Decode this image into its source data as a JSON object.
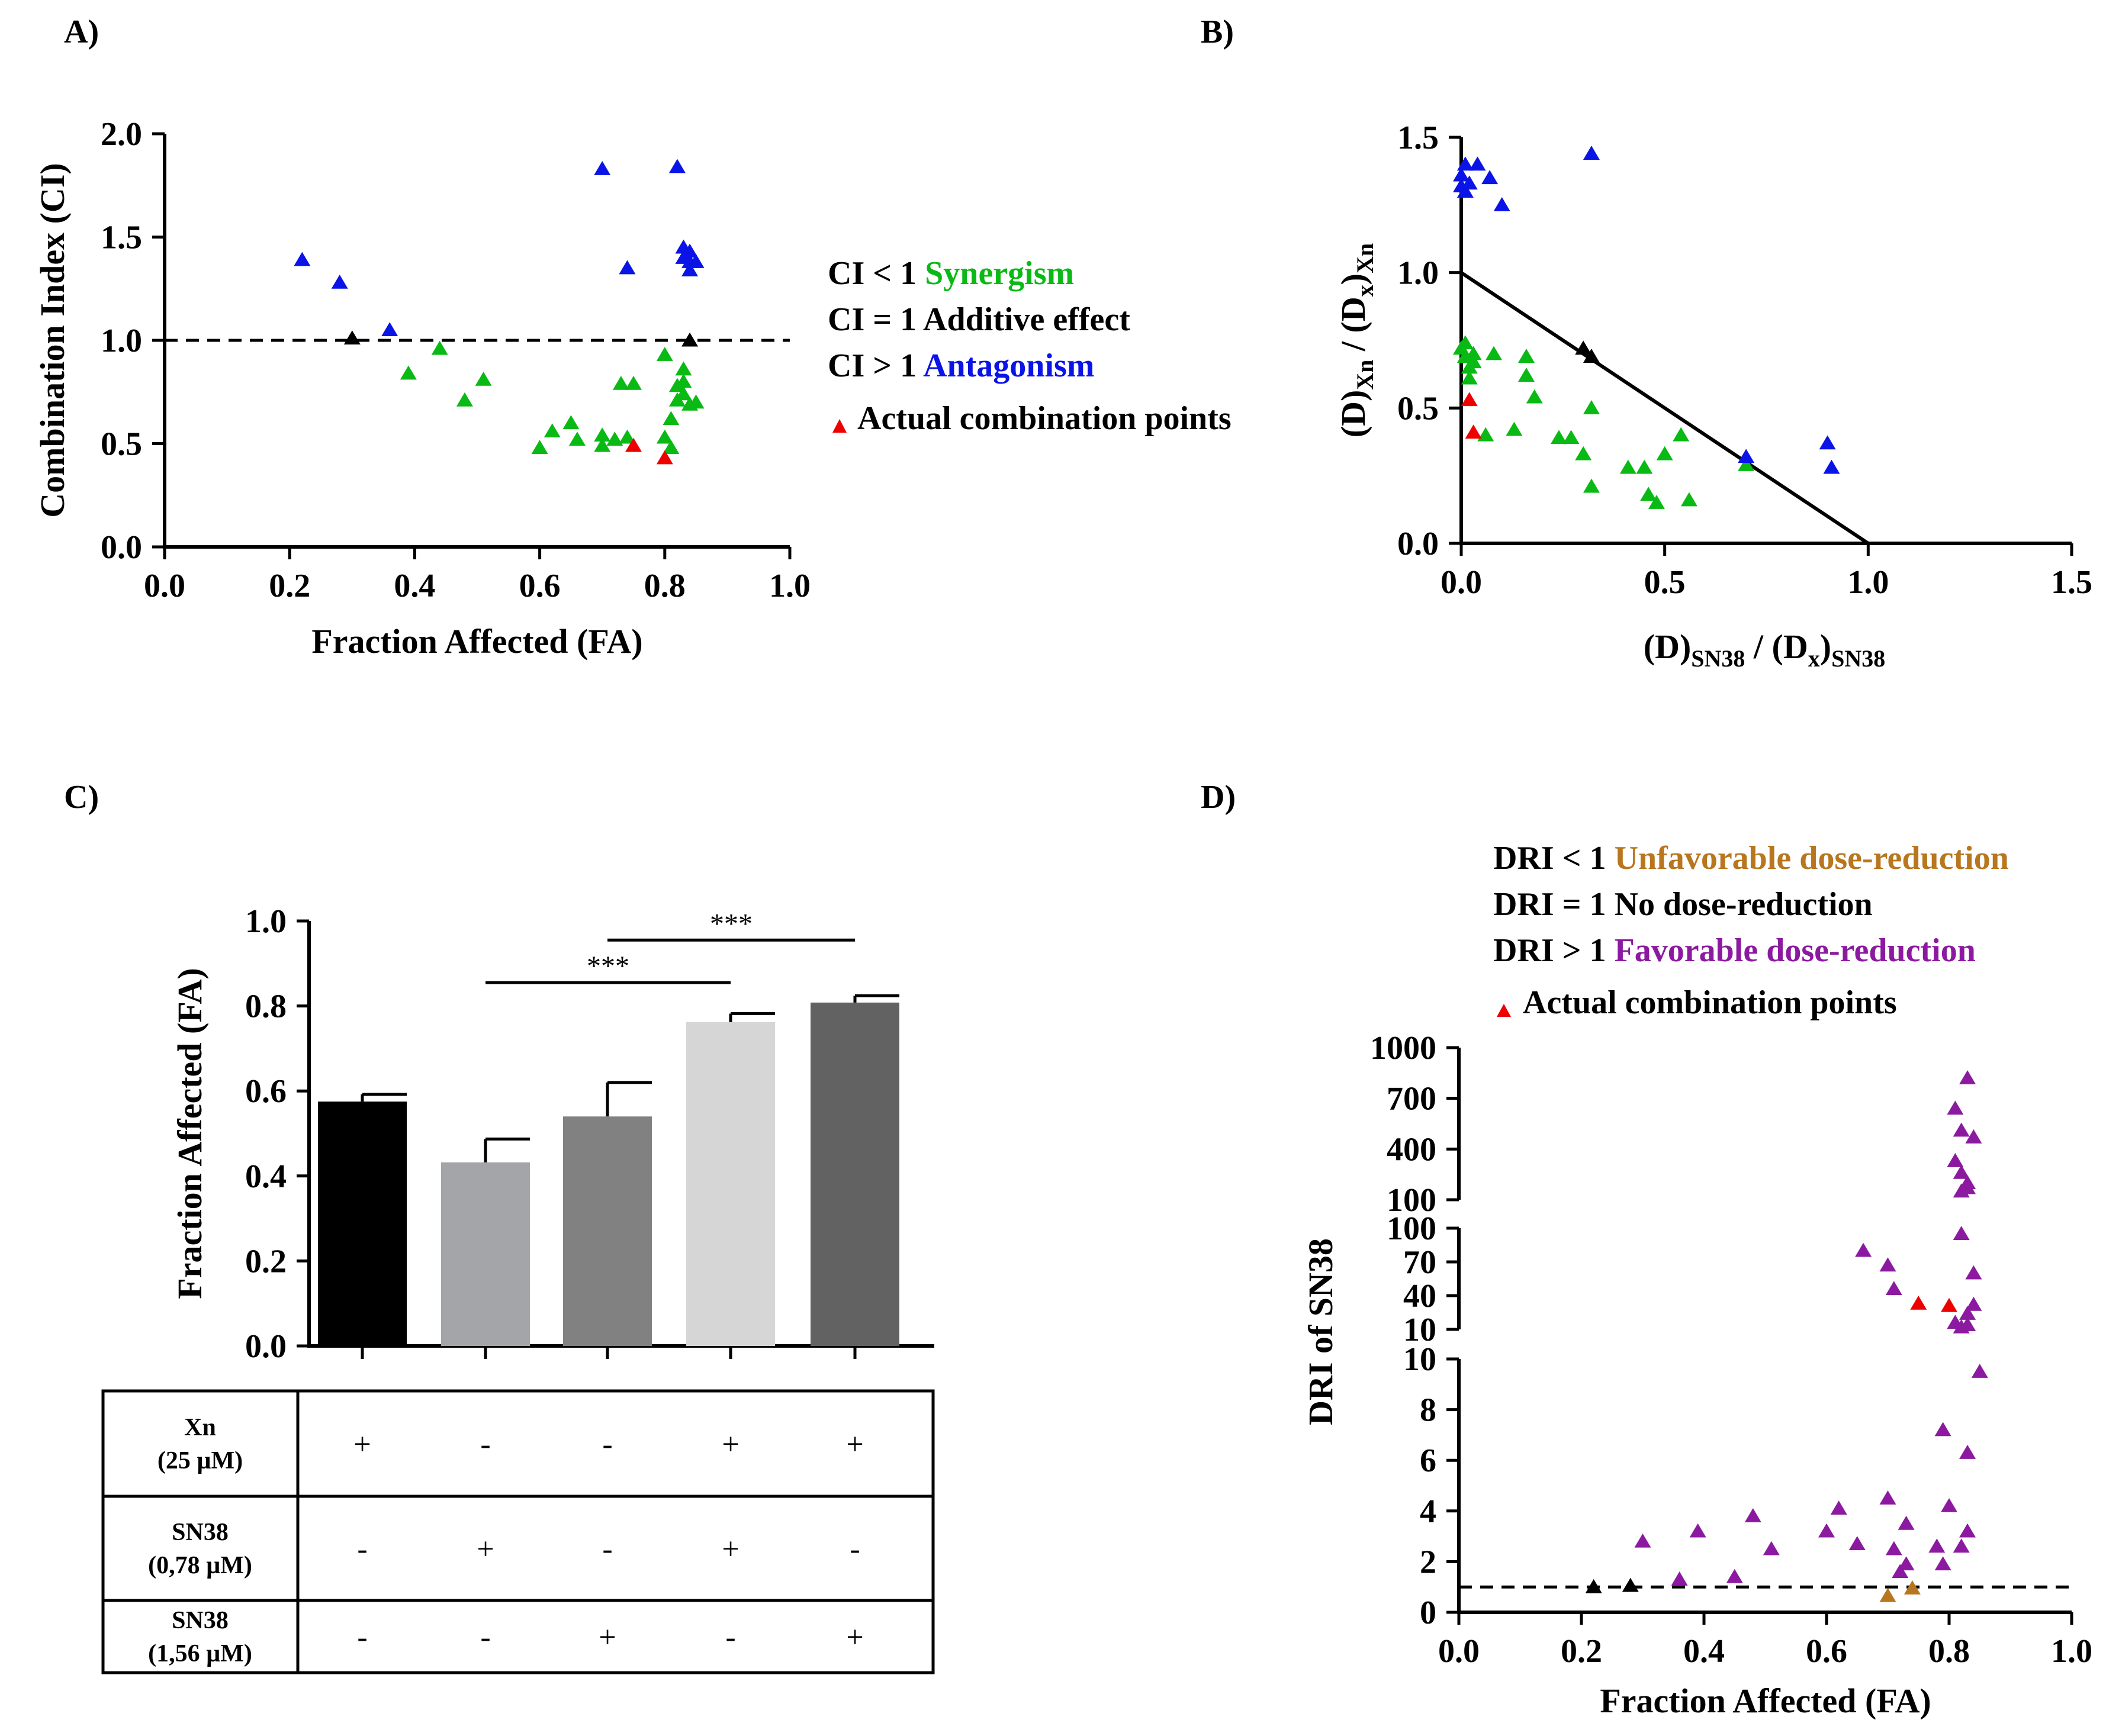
{
  "panels": {
    "a": "A)",
    "b": "B)",
    "c": "C)",
    "d": "D)"
  },
  "colors": {
    "synergism": "#0aba14",
    "antagonism": "#0a14e6",
    "additive": "#000000",
    "actual": "#ee0000",
    "unfavorable": "#b8761e",
    "favorable": "#8c1aa0"
  },
  "chart_data": [
    {
      "id": "A",
      "type": "scatter",
      "xlabel": "Fraction Affected (FA)",
      "ylabel": "Combination Index (CI)",
      "xlim": [
        0,
        1
      ],
      "ylim": [
        0,
        2
      ],
      "xticks": [
        "0.0",
        "0.2",
        "0.4",
        "0.6",
        "0.8",
        "1.0"
      ],
      "yticks": [
        "0.0",
        "0.5",
        "1.0",
        "1.5",
        "2.0"
      ],
      "reference_line": 1.0,
      "legend": {
        "lines": [
          {
            "prefix": "CI < 1 ",
            "label": "Synergism"
          },
          {
            "prefix": "CI = 1 Additive effect",
            "label": ""
          },
          {
            "prefix": "CI > 1 ",
            "label": "Antagonism"
          }
        ],
        "actual": "Actual combination points"
      },
      "series": [
        {
          "name": "Synergism",
          "points": [
            [
              0.39,
              0.84
            ],
            [
              0.44,
              0.96
            ],
            [
              0.48,
              0.71
            ],
            [
              0.51,
              0.81
            ],
            [
              0.6,
              0.48
            ],
            [
              0.62,
              0.56
            ],
            [
              0.65,
              0.6
            ],
            [
              0.66,
              0.52
            ],
            [
              0.7,
              0.54
            ],
            [
              0.7,
              0.49
            ],
            [
              0.72,
              0.52
            ],
            [
              0.73,
              0.79
            ],
            [
              0.74,
              0.53
            ],
            [
              0.75,
              0.79
            ],
            [
              0.8,
              0.53
            ],
            [
              0.8,
              0.93
            ],
            [
              0.81,
              0.62
            ],
            [
              0.82,
              0.71
            ],
            [
              0.82,
              0.78
            ],
            [
              0.83,
              0.86
            ],
            [
              0.83,
              0.74
            ],
            [
              0.84,
              0.69
            ],
            [
              0.85,
              0.7
            ],
            [
              0.83,
              0.8
            ],
            [
              0.81,
              0.48
            ]
          ]
        },
        {
          "name": "Antagonism",
          "points": [
            [
              0.22,
              1.39
            ],
            [
              0.28,
              1.28
            ],
            [
              0.36,
              1.05
            ],
            [
              0.7,
              1.83
            ],
            [
              0.74,
              1.35
            ],
            [
              0.82,
              1.84
            ],
            [
              0.83,
              1.45
            ],
            [
              0.83,
              1.4
            ],
            [
              0.84,
              1.38
            ],
            [
              0.85,
              1.38
            ],
            [
              0.84,
              1.34
            ],
            [
              0.84,
              1.43
            ]
          ]
        },
        {
          "name": "Additive",
          "points": [
            [
              0.3,
              1.01
            ],
            [
              0.84,
              1.0
            ]
          ]
        },
        {
          "name": "Actual",
          "points": [
            [
              0.75,
              0.49
            ],
            [
              0.8,
              0.43
            ]
          ]
        }
      ]
    },
    {
      "id": "B",
      "type": "scatter",
      "xlabel": "(D)SN38 / (Dx)SN38",
      "ylabel": "(D)Xn / (Dx)Xn",
      "xlabel_parts": [
        "(D)",
        "SN38",
        " / (D",
        "x",
        ")",
        "SN38"
      ],
      "ylabel_parts": [
        "(D)",
        "Xn",
        " / (D",
        "x",
        ")",
        "Xn"
      ],
      "xlim": [
        0,
        1.5
      ],
      "ylim": [
        0,
        1.5
      ],
      "xticks": [
        "0.0",
        "0.5",
        "1.0",
        "1.5"
      ],
      "yticks": [
        "0.0",
        "0.5",
        "1.0",
        "1.5"
      ],
      "additivity_line": [
        [
          0,
          1
        ],
        [
          1,
          0
        ]
      ],
      "series": [
        {
          "name": "Synergism",
          "points": [
            [
              0.0,
              0.72
            ],
            [
              0.01,
              0.74
            ],
            [
              0.01,
              0.69
            ],
            [
              0.02,
              0.65
            ],
            [
              0.02,
              0.61
            ],
            [
              0.03,
              0.7
            ],
            [
              0.03,
              0.67
            ],
            [
              0.06,
              0.4
            ],
            [
              0.08,
              0.7
            ],
            [
              0.13,
              0.42
            ],
            [
              0.16,
              0.69
            ],
            [
              0.16,
              0.62
            ],
            [
              0.18,
              0.54
            ],
            [
              0.24,
              0.39
            ],
            [
              0.27,
              0.39
            ],
            [
              0.3,
              0.33
            ],
            [
              0.32,
              0.5
            ],
            [
              0.32,
              0.21
            ],
            [
              0.41,
              0.28
            ],
            [
              0.45,
              0.28
            ],
            [
              0.46,
              0.18
            ],
            [
              0.48,
              0.15
            ],
            [
              0.5,
              0.33
            ],
            [
              0.54,
              0.4
            ],
            [
              0.56,
              0.16
            ],
            [
              0.7,
              0.29
            ]
          ]
        },
        {
          "name": "Antagonism",
          "points": [
            [
              0.0,
              1.36
            ],
            [
              0.0,
              1.32
            ],
            [
              0.01,
              1.4
            ],
            [
              0.01,
              1.3
            ],
            [
              0.02,
              1.33
            ],
            [
              0.04,
              1.4
            ],
            [
              0.07,
              1.35
            ],
            [
              0.1,
              1.25
            ],
            [
              0.32,
              1.44
            ],
            [
              0.7,
              0.32
            ],
            [
              0.9,
              0.37
            ],
            [
              0.91,
              0.28
            ]
          ]
        },
        {
          "name": "Additive",
          "points": [
            [
              0.3,
              0.72
            ],
            [
              0.32,
              0.69
            ]
          ]
        },
        {
          "name": "Actual",
          "points": [
            [
              0.02,
              0.53
            ],
            [
              0.03,
              0.41
            ]
          ]
        }
      ]
    },
    {
      "id": "C",
      "type": "bar",
      "ylabel": "Fraction Affected (FA)",
      "ylim": [
        0,
        1
      ],
      "yticks": [
        "0.0",
        "0.2",
        "0.4",
        "0.6",
        "0.8",
        "1.0"
      ],
      "values": [
        0.575,
        0.432,
        0.54,
        0.762,
        0.808
      ],
      "errors": [
        0.017,
        0.055,
        0.08,
        0.02,
        0.016
      ],
      "bar_colors": [
        "#000000",
        "#a4a5a8",
        "#818182",
        "#d6d6d6",
        "#626262"
      ],
      "significance": [
        {
          "from": 1,
          "to": 3,
          "y": 0.855,
          "label": "***"
        },
        {
          "from": 2,
          "to": 4,
          "y": 0.955,
          "label": "***"
        }
      ],
      "table": {
        "rows": [
          {
            "line1": "Xn",
            "line2": "(25 µM)",
            "signs": [
              "+",
              "-",
              "-",
              "+",
              "+"
            ]
          },
          {
            "line1": "SN38",
            "line2": "(0,78 µM)",
            "signs": [
              "-",
              "+",
              "-",
              "+",
              "-"
            ]
          },
          {
            "line1": "SN38",
            "line2": "(1,56 µM)",
            "signs": [
              "-",
              "-",
              "+",
              "-",
              "+"
            ]
          }
        ]
      }
    },
    {
      "id": "D",
      "type": "scatter",
      "xlabel": "Fraction Affected (FA)",
      "ylabel": "DRI of SN38",
      "xlim": [
        0,
        1
      ],
      "xticks": [
        "0.0",
        "0.2",
        "0.4",
        "0.6",
        "0.8",
        "1.0"
      ],
      "y_segments": [
        {
          "range": [
            0,
            10
          ],
          "ticks": [
            "0",
            "2",
            "4",
            "6",
            "8",
            "10"
          ]
        },
        {
          "range": [
            10,
            100
          ],
          "ticks": [
            "10",
            "40",
            "70",
            "100"
          ]
        },
        {
          "range": [
            100,
            1000
          ],
          "ticks": [
            "100",
            "400",
            "700",
            "1000"
          ]
        }
      ],
      "reference_line": 1.0,
      "legend": {
        "lines": [
          {
            "prefix": "DRI < 1 ",
            "label": "Unfavorable dose-reduction"
          },
          {
            "prefix": "DRI = 1 No dose-reduction",
            "label": ""
          },
          {
            "prefix": "DRI > 1 ",
            "label": "Favorable dose-reduction"
          }
        ],
        "actual": "Actual combination points"
      },
      "series": [
        {
          "name": "Favorable",
          "points": [
            [
              0.3,
              2.8
            ],
            [
              0.36,
              1.3
            ],
            [
              0.39,
              3.2
            ],
            [
              0.45,
              1.4
            ],
            [
              0.48,
              3.8
            ],
            [
              0.51,
              2.5
            ],
            [
              0.6,
              3.2
            ],
            [
              0.62,
              4.1
            ],
            [
              0.65,
              2.7
            ],
            [
              0.7,
              4.5
            ],
            [
              0.71,
              2.5
            ],
            [
              0.72,
              1.6
            ],
            [
              0.73,
              3.5
            ],
            [
              0.73,
              1.9
            ],
            [
              0.78,
              2.6
            ],
            [
              0.79,
              1.9
            ],
            [
              0.79,
              7.2
            ],
            [
              0.8,
              4.2
            ],
            [
              0.82,
              2.6
            ],
            [
              0.83,
              6.3
            ],
            [
              0.83,
              3.2
            ],
            [
              0.85,
              9.5
            ],
            [
              0.66,
              80
            ],
            [
              0.7,
              67
            ],
            [
              0.71,
              46
            ],
            [
              0.81,
              16
            ],
            [
              0.82,
              12
            ],
            [
              0.83,
              14
            ],
            [
              0.83,
              14
            ],
            [
              0.83,
              24
            ],
            [
              0.84,
              32
            ],
            [
              0.84,
              60
            ],
            [
              0.82,
              95
            ],
            [
              0.81,
              640
            ],
            [
              0.82,
              510
            ],
            [
              0.84,
              470
            ],
            [
              0.81,
              330
            ],
            [
              0.82,
              260
            ],
            [
              0.83,
              200
            ],
            [
              0.82,
              150
            ],
            [
              0.83,
              170
            ],
            [
              0.83,
              820
            ]
          ]
        },
        {
          "name": "Unfavorable",
          "points": [
            [
              0.7,
              0.65
            ],
            [
              0.74,
              0.95
            ]
          ]
        },
        {
          "name": "Additive",
          "points": [
            [
              0.22,
              1.0
            ],
            [
              0.28,
              1.05
            ]
          ]
        },
        {
          "name": "Actual",
          "points": [
            [
              0.75,
              33
            ],
            [
              0.8,
              31
            ]
          ]
        }
      ]
    }
  ]
}
